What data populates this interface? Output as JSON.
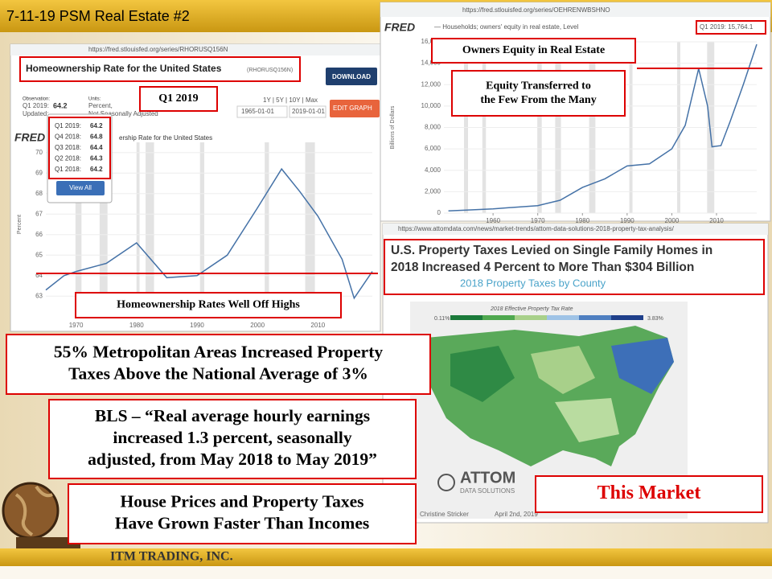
{
  "slide": {
    "title": "7-11-19 PSM Real Estate #2",
    "company": "ITM TRADING, INC."
  },
  "left_screenshot": {
    "url": "https://fred.stlouisfed.org/series/RHORUSQ156N",
    "title": "Homeownership Rate for the United States",
    "series_id": "(RHORUSQ156N)",
    "download": "DOWNLOAD",
    "observation_label": "Observation:",
    "observation_period": "Q1 2019:",
    "observation_value": "64.2",
    "updated": "Updated:",
    "units_label": "Units:",
    "units": "Percent,",
    "adjustment": "Not Seasonally Adjusted",
    "ranges": "1Y | 5Y | 10Y | Max",
    "start_date": "1965-01-01",
    "end_date": "2019-01-01",
    "edit_graph": "EDIT GRAPH",
    "fred": "FRED",
    "chart_title": "ership Rate for the United States",
    "table": [
      [
        "Q1 2019:",
        "64.2"
      ],
      [
        "Q4 2018:",
        "64.8"
      ],
      [
        "Q3 2018:",
        "64.4"
      ],
      [
        "Q2 2018:",
        "64.3"
      ],
      [
        "Q1 2018:",
        "64.2"
      ]
    ],
    "view_all": "View All"
  },
  "chart_data": [
    {
      "type": "line",
      "y_label": "Percent",
      "x": [
        1965,
        1968,
        1970,
        1975,
        1980,
        1985,
        1990,
        1995,
        2000,
        2004,
        2007,
        2010,
        2014,
        2016,
        2019
      ],
      "series": [
        {
          "name": "Homeownership Rate",
          "color": "#4572a7",
          "values": [
            63.3,
            64.0,
            64.2,
            64.6,
            65.6,
            63.9,
            64.0,
            65.0,
            67.3,
            69.2,
            68.1,
            66.9,
            64.8,
            62.9,
            64.2
          ]
        }
      ],
      "xlim": [
        1965,
        2019
      ],
      "xticks": [
        1970,
        1980,
        1990,
        2000,
        2010
      ],
      "ylim": [
        62.5,
        70.5
      ],
      "yticks": [
        63,
        64,
        65,
        66,
        67,
        68,
        69,
        70
      ]
    },
    {
      "type": "line",
      "y_label": "Billions of Dollars",
      "x": [
        1950,
        1960,
        1970,
        1975,
        1980,
        1985,
        1990,
        1995,
        2000,
        2003,
        2006,
        2008,
        2009,
        2011,
        2013,
        2016,
        2019
      ],
      "series": [
        {
          "name": "Households; owners' equity in real estate, Level",
          "color": "#4572a7",
          "values": [
            200,
            400,
            700,
            1200,
            2400,
            3200,
            4400,
            4600,
            6000,
            8200,
            13500,
            10000,
            6200,
            6300,
            8500,
            12000,
            15764.1
          ]
        }
      ],
      "xlim": [
        1949,
        2019
      ],
      "xticks": [
        1960,
        1970,
        1980,
        1990,
        2000,
        2010
      ],
      "ylim": [
        0,
        16000
      ],
      "yticks": [
        0,
        {
          "value": 2000,
          "label": "2,000"
        },
        {
          "value": 4000,
          "label": "4,000"
        },
        {
          "value": 6000,
          "label": "6,000"
        },
        {
          "value": 8000,
          "label": "8,000"
        },
        {
          "value": 10000,
          "label": "10,000"
        },
        {
          "value": 12000,
          "label": "12,000"
        },
        {
          "value": 14000,
          "label": "14,000"
        },
        {
          "value": 16000,
          "label": "16,000"
        }
      ]
    }
  ],
  "right_screenshot": {
    "url": "https://fred.stlouisfed.org/series/OEHRENWBSHNO",
    "fred": "FRED",
    "legend": "— Households; owners' equity in real estate, Level",
    "latest": "Q1 2019: 15,764.1"
  },
  "attom_screenshot": {
    "url": "https://www.attomdata.com/news/market-trends/attom-data-solutions-2018-property-tax-analysis/",
    "headline": [
      "U.S. Property Taxes Levied on Single Family Homes in",
      "2018 Increased 4 Percent to More Than $304 Billion"
    ],
    "subtitle": "2018 Property Taxes by County",
    "legend_title": "2018 Effective Property Tax Rate",
    "legend_min": "0.11%",
    "legend_max": "3.83%",
    "logo": "ATTOM",
    "logo_sub": "DATA SOLUTIONS",
    "author": "Christine Stricker",
    "date": "April 2nd, 2019"
  },
  "callouts": {
    "q1": "Q1 2019",
    "owners_equity": "Owners Equity in Real Estate",
    "equity_transferred": [
      "Equity Transferred to",
      "the Few From the Many"
    ],
    "homeownership": "Homeownership Rates Well Off Highs",
    "metro": [
      "55% Metropolitan Areas Increased Property",
      "Taxes Above the National Average of 3%"
    ],
    "bls": [
      "BLS – “Real average hourly earnings",
      "increased 1.3 percent, seasonally",
      "adjusted, from May 2018 to May 2019”"
    ],
    "house_prices": [
      "House Prices and Property Taxes",
      "Have Grown Faster  Than Incomes"
    ],
    "this_market": "This  Market"
  }
}
